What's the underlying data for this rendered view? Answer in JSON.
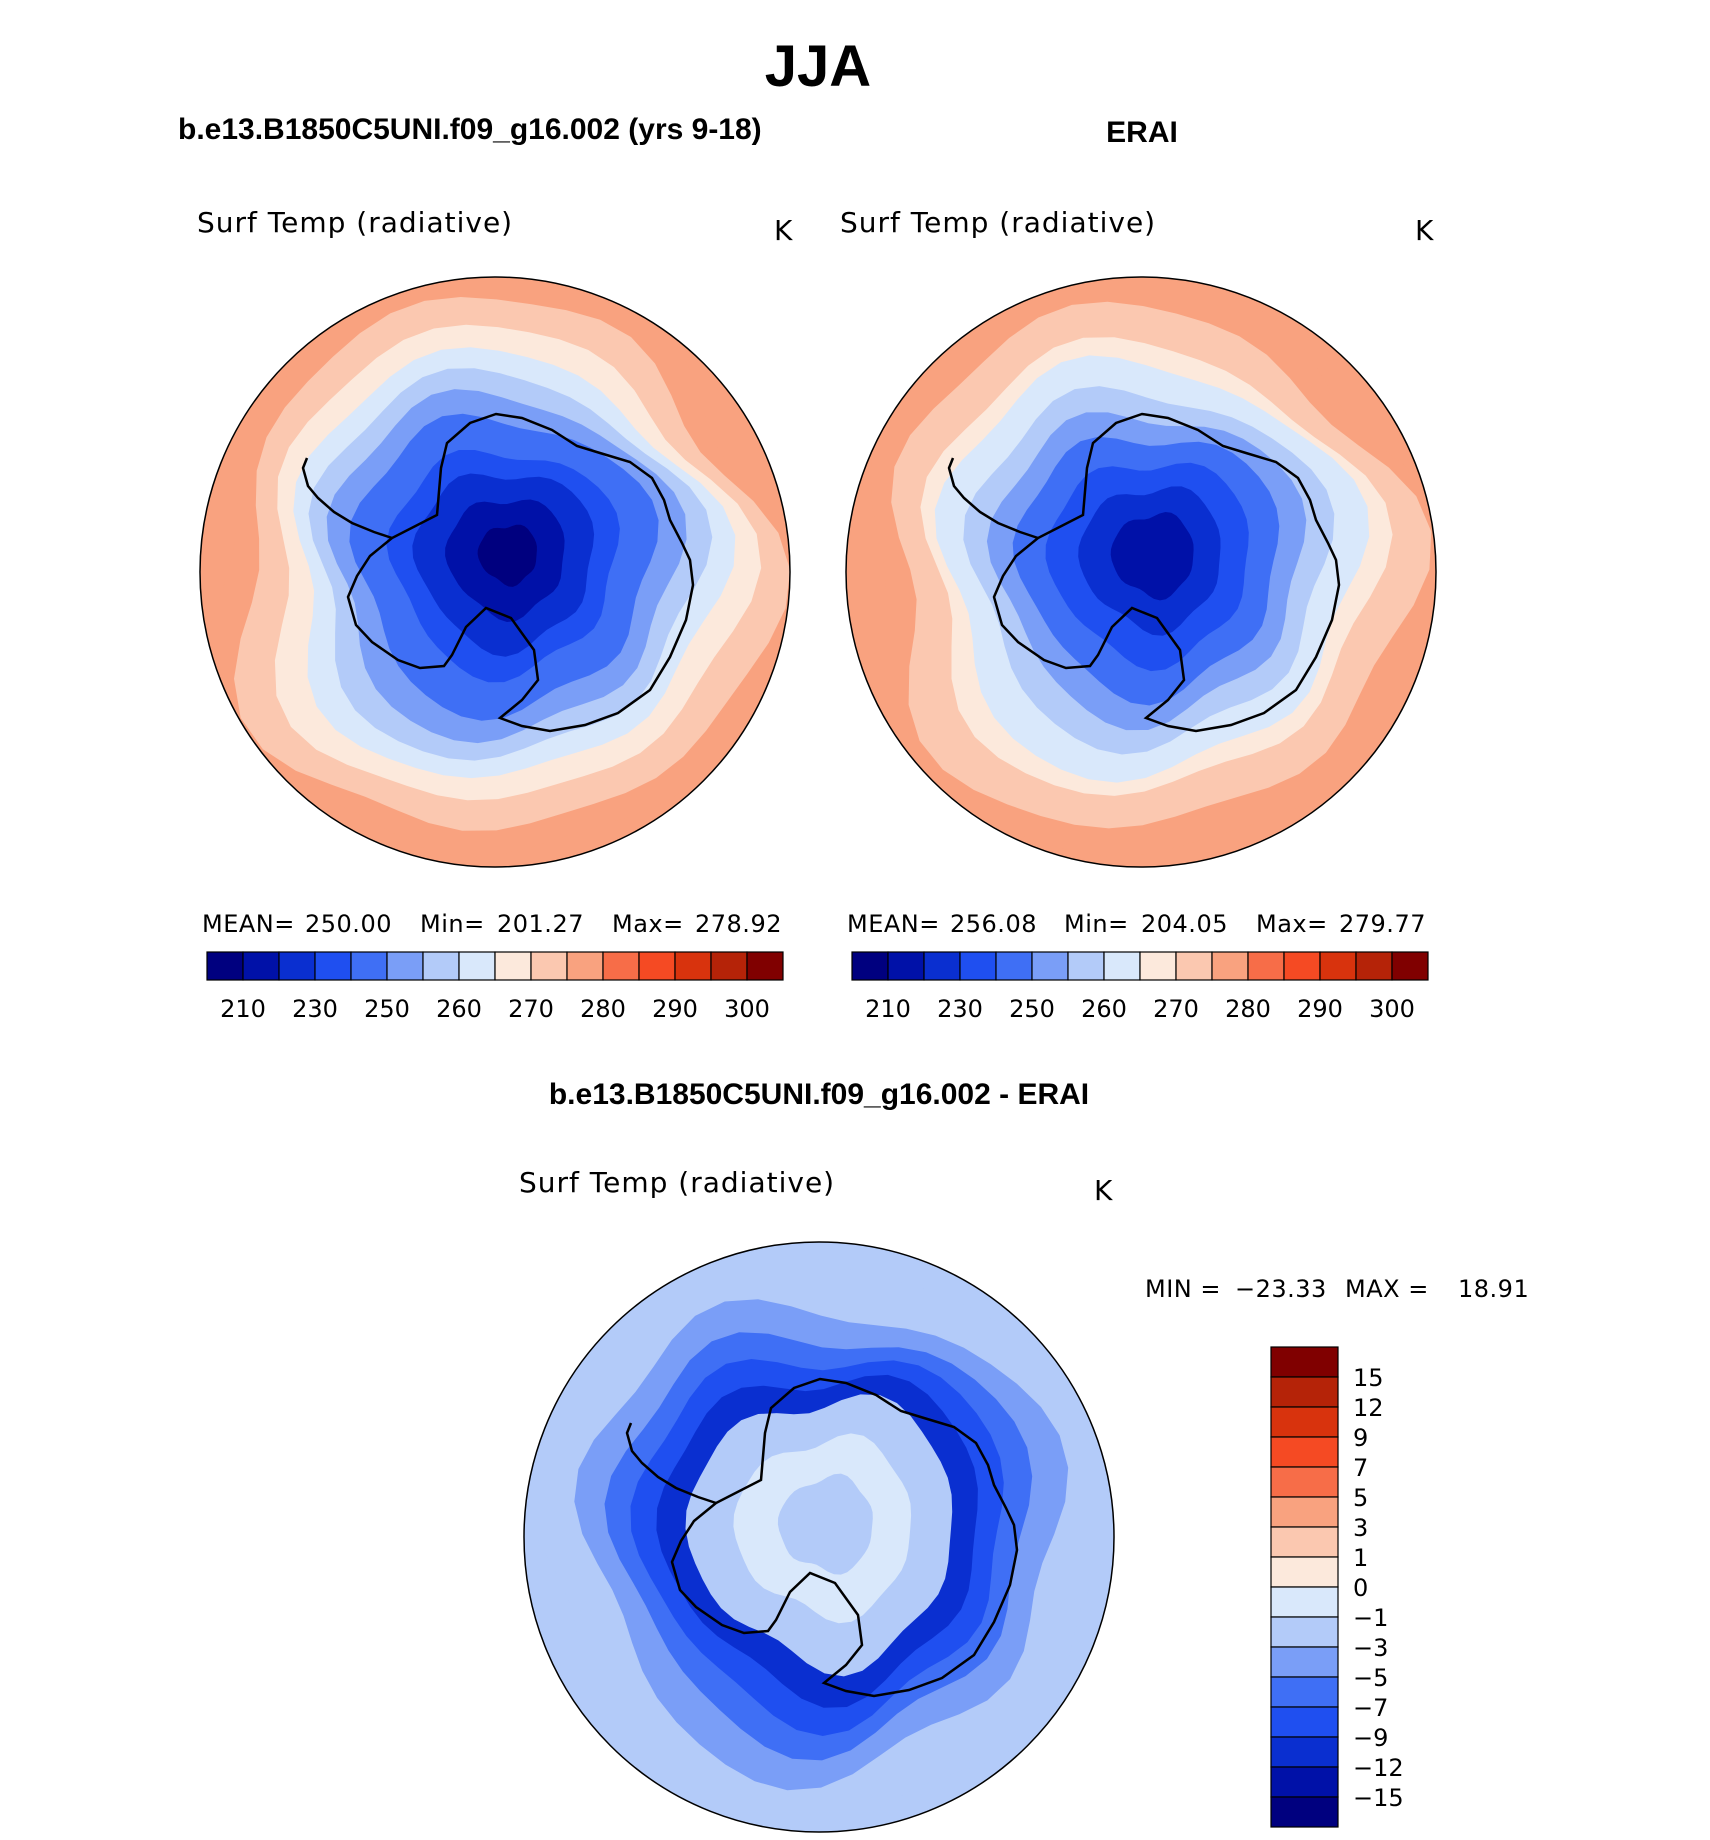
{
  "figure": {
    "season": "JJA",
    "model_title": "b.e13.B1850C5UNI.f09_g16.002 (yrs 9-18)",
    "obs_title": "ERAI",
    "diff_title": "b.e13.B1850C5UNI.f09_g16.002 - ERAI"
  },
  "chart_data": [
    {
      "type": "heatmap",
      "id": "model",
      "projection": "south-polar-stereographic",
      "variable": "Surf Temp (radiative)",
      "units": "K",
      "stats": {
        "mean_label": "MEAN=",
        "mean": "250.00",
        "min_label": "Min=",
        "min": "201.27",
        "max_label": "Max=",
        "max": "278.92"
      },
      "colorbar": {
        "orientation": "horizontal",
        "colors": [
          "#00007f",
          "#0011a8",
          "#0a2fd0",
          "#1f4ff0",
          "#3f6ff5",
          "#7a9ef7",
          "#b3cbf9",
          "#d9e8fb",
          "#fce9dc",
          "#fbc8b0",
          "#f9a27f",
          "#f76d48",
          "#f54a23",
          "#d8330d",
          "#b52308",
          "#800000"
        ],
        "tick_labels": [
          "210",
          "230",
          "250",
          "260",
          "270",
          "280",
          "290",
          "300"
        ]
      },
      "zones": [
        {
          "level": 0.98,
          "color": "#f9a27f"
        },
        {
          "level": 0.9,
          "color": "#fbc8b0"
        },
        {
          "level": 0.8,
          "color": "#fce9dc"
        },
        {
          "level": 0.72,
          "color": "#d9e8fb"
        },
        {
          "level": 0.65,
          "color": "#b3cbf9"
        },
        {
          "level": 0.58,
          "color": "#7a9ef7"
        },
        {
          "level": 0.5,
          "color": "#3f6ff5"
        },
        {
          "level": 0.38,
          "color": "#1f4ff0"
        },
        {
          "level": 0.3,
          "color": "#0a2fd0"
        },
        {
          "level": 0.2,
          "color": "#0011a8"
        },
        {
          "level": 0.1,
          "color": "#00007f"
        }
      ]
    },
    {
      "type": "heatmap",
      "id": "obs",
      "projection": "south-polar-stereographic",
      "variable": "Surf Temp (radiative)",
      "units": "K",
      "stats": {
        "mean_label": "MEAN=",
        "mean": "256.08",
        "min_label": "Min=",
        "min": "204.05",
        "max_label": "Max=",
        "max": "279.77"
      },
      "colorbar": {
        "orientation": "horizontal",
        "colors": [
          "#00007f",
          "#0011a8",
          "#0a2fd0",
          "#1f4ff0",
          "#3f6ff5",
          "#7a9ef7",
          "#b3cbf9",
          "#d9e8fb",
          "#fce9dc",
          "#fbc8b0",
          "#f9a27f",
          "#f76d48",
          "#f54a23",
          "#d8330d",
          "#b52308",
          "#800000"
        ],
        "tick_labels": [
          "210",
          "230",
          "250",
          "260",
          "270",
          "280",
          "290",
          "300"
        ]
      },
      "zones": [
        {
          "level": 0.98,
          "color": "#f9a27f"
        },
        {
          "level": 0.88,
          "color": "#fbc8b0"
        },
        {
          "level": 0.76,
          "color": "#fce9dc"
        },
        {
          "level": 0.7,
          "color": "#d9e8fb"
        },
        {
          "level": 0.6,
          "color": "#b3cbf9"
        },
        {
          "level": 0.52,
          "color": "#7a9ef7"
        },
        {
          "level": 0.44,
          "color": "#3f6ff5"
        },
        {
          "level": 0.34,
          "color": "#1f4ff0"
        },
        {
          "level": 0.24,
          "color": "#0a2fd0"
        },
        {
          "level": 0.14,
          "color": "#0011a8"
        }
      ]
    },
    {
      "type": "heatmap",
      "id": "diff",
      "projection": "south-polar-stereographic",
      "variable": "Surf Temp (radiative)",
      "units": "K",
      "stats": {
        "min_label": "MIN =",
        "min": "−23.33",
        "max_label": "MAX =",
        "max": "18.91"
      },
      "colorbar": {
        "orientation": "vertical",
        "colors_top_to_bottom": [
          "#800000",
          "#b52308",
          "#d8330d",
          "#f54a23",
          "#f76d48",
          "#f9a27f",
          "#fbc8b0",
          "#fce9dc",
          "#d9e8fb",
          "#b3cbf9",
          "#7a9ef7",
          "#3f6ff5",
          "#1f4ff0",
          "#0a2fd0",
          "#0011a8",
          "#00007f"
        ],
        "tick_labels_top_to_bottom": [
          "15",
          "12",
          "9",
          "7",
          "5",
          "3",
          "1",
          "0",
          "−1",
          "−3",
          "−5",
          "−7",
          "−9",
          "−12",
          "−15"
        ]
      },
      "zones": [
        {
          "level": 0.98,
          "color": "#b3cbf9"
        },
        {
          "level": 0.8,
          "color": "#7a9ef7"
        },
        {
          "level": 0.7,
          "color": "#3f6ff5"
        },
        {
          "level": 0.62,
          "color": "#1f4ff0"
        },
        {
          "level": 0.54,
          "color": "#0a2fd0"
        },
        {
          "level": 0.45,
          "color": "#b3cbf9"
        },
        {
          "level": 0.3,
          "color": "#d9e8fb"
        },
        {
          "level": 0.16,
          "color": "#b3cbf9"
        }
      ]
    }
  ]
}
